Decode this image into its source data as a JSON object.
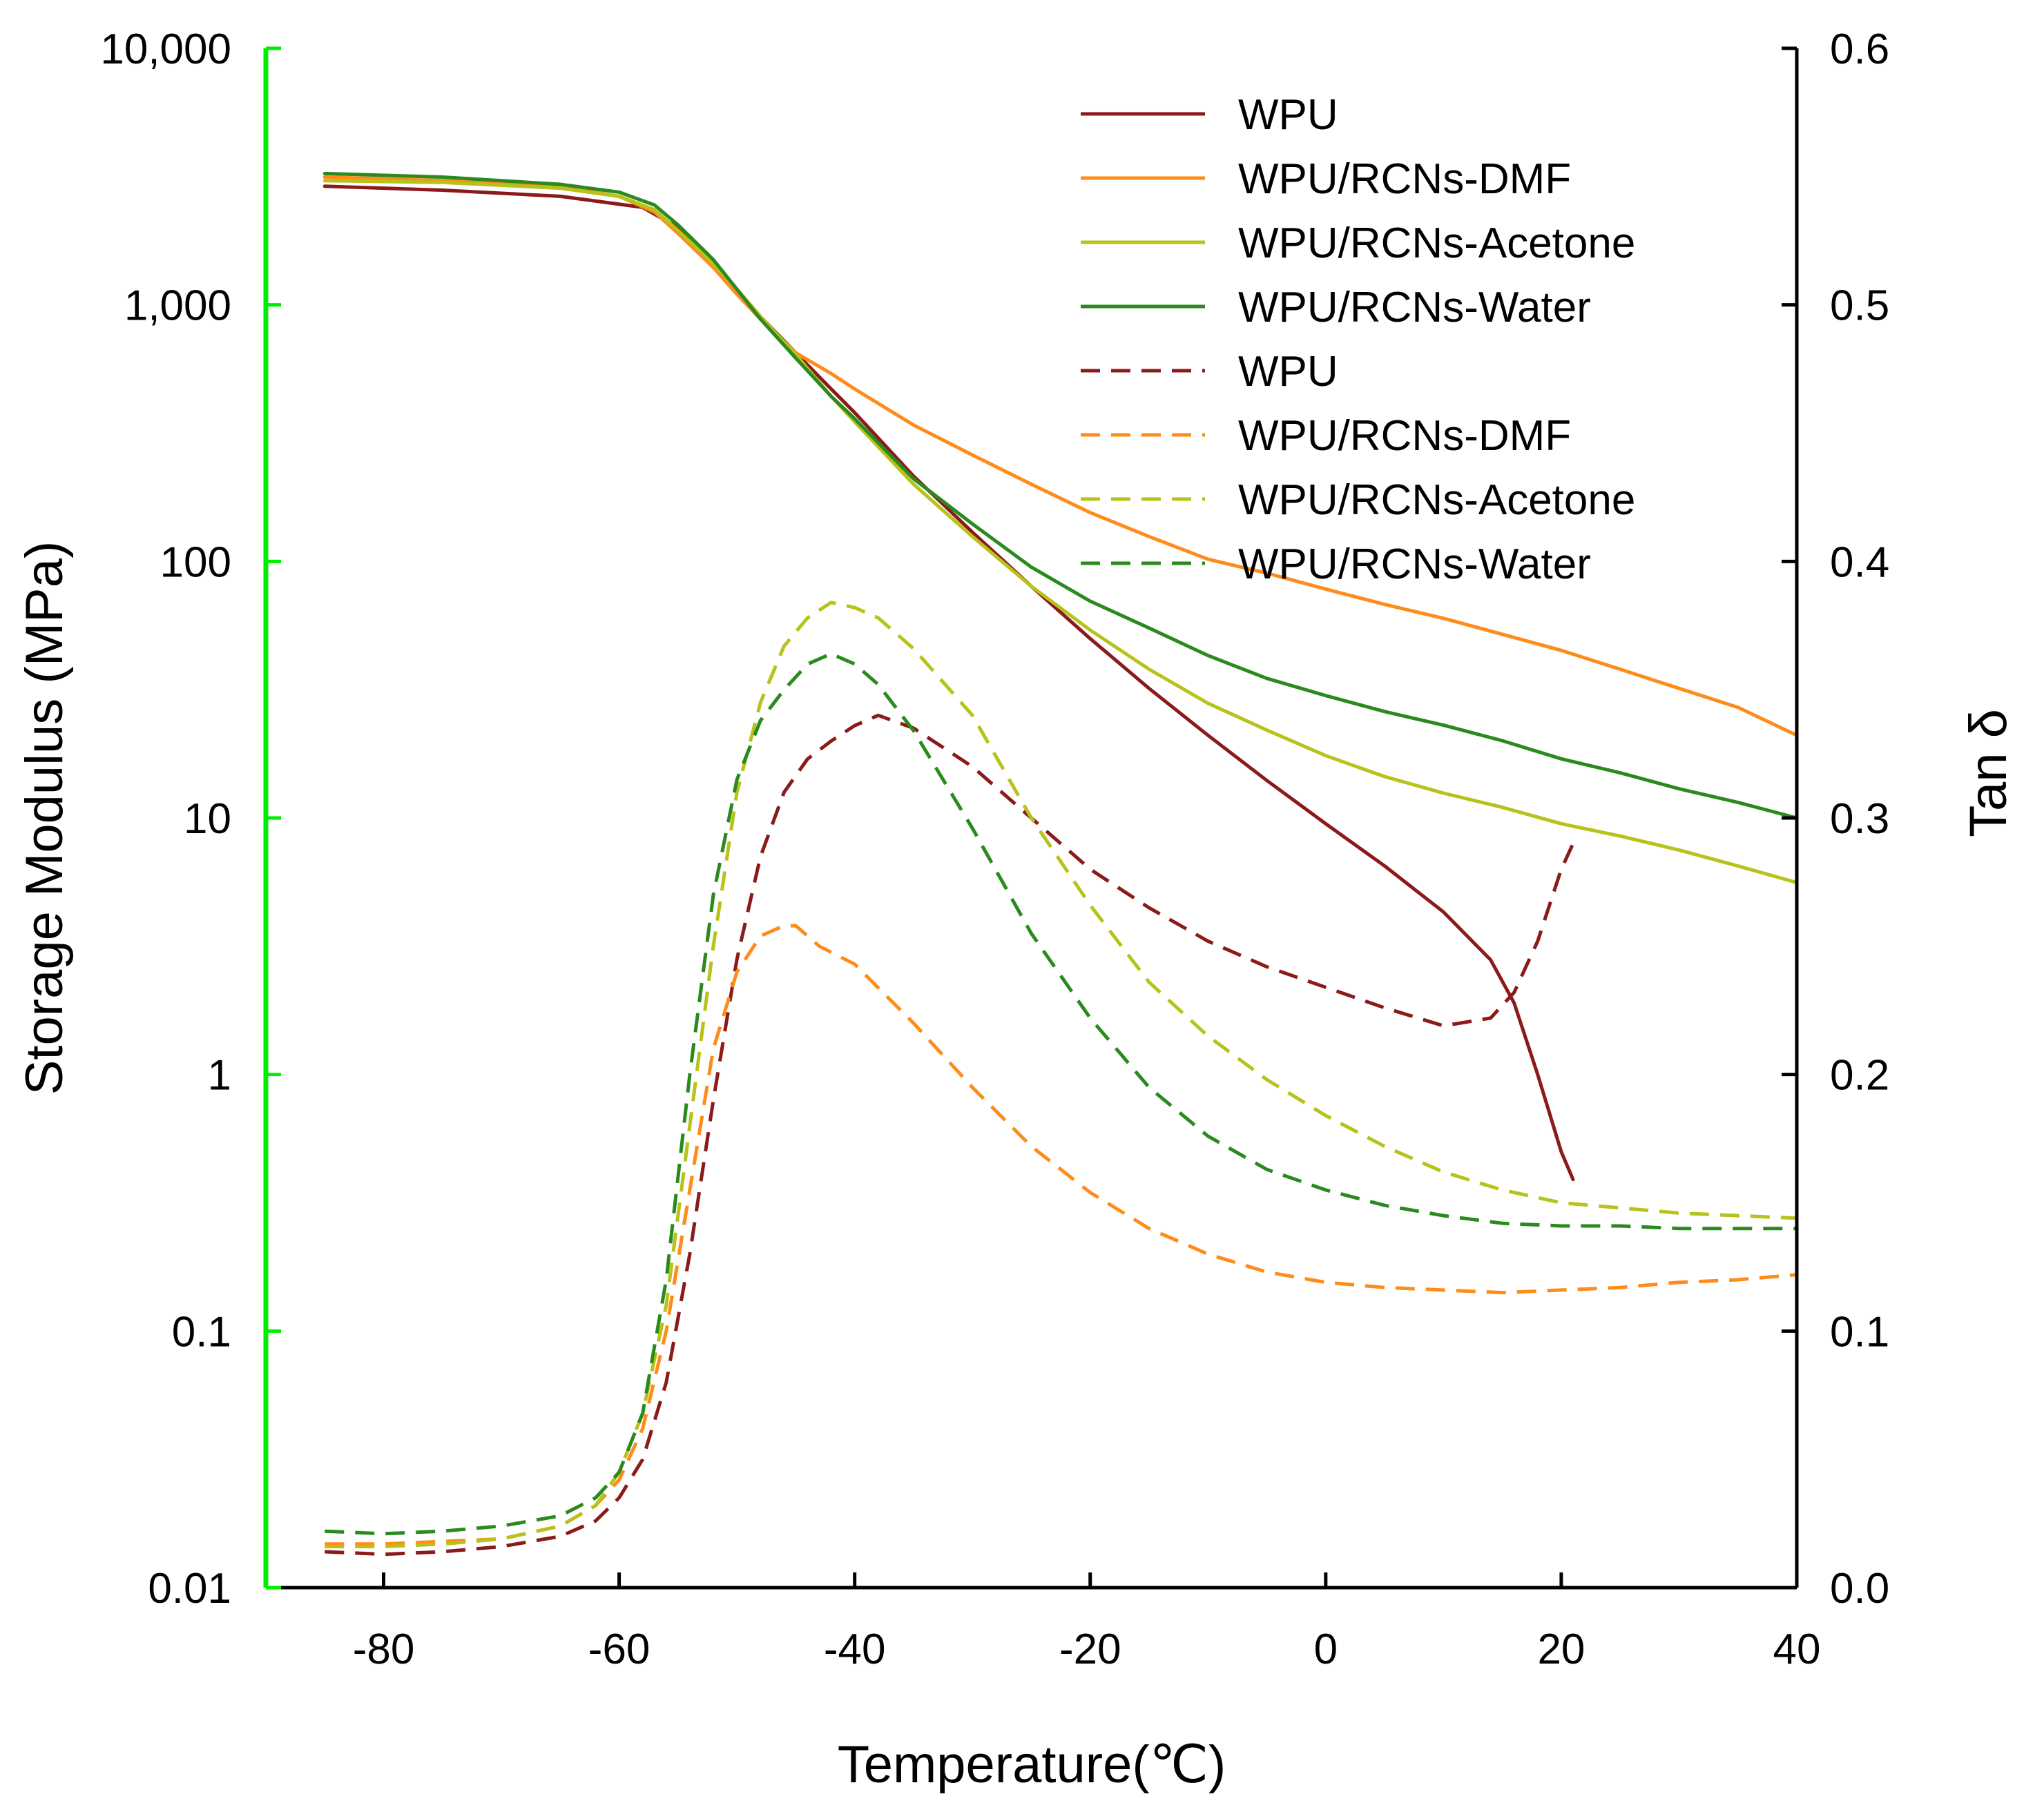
{
  "chart_data": {
    "type": "line",
    "xlabel": "Temperature(℃)",
    "ylabel_left": "Storage Modulus (MPa)",
    "ylabel_right": "Tan δ",
    "xlim": [
      -90,
      40
    ],
    "x_ticks": [
      -80,
      -60,
      -40,
      -20,
      0,
      20,
      40
    ],
    "y_left_scale": "log",
    "y_left_lim": [
      0.01,
      10000
    ],
    "y_left_ticks": [
      {
        "value": 0.01,
        "label": "0.01"
      },
      {
        "value": 0.1,
        "label": "0.1"
      },
      {
        "value": 1,
        "label": "1"
      },
      {
        "value": 10,
        "label": "10"
      },
      {
        "value": 100,
        "label": "100"
      },
      {
        "value": 1000,
        "label": "1,000"
      },
      {
        "value": 10000,
        "label": "10,000"
      }
    ],
    "y_right_lim": [
      0.0,
      0.6
    ],
    "y_right_ticks": [
      "0.0",
      "0.1",
      "0.2",
      "0.3",
      "0.4",
      "0.5",
      "0.6"
    ],
    "grid": false,
    "legend_position": "top-right",
    "left_axis_color": "#00ee00",
    "series": [
      {
        "name": "WPU",
        "axis": "left",
        "style": "solid",
        "color": "#8b1a1a",
        "points": [
          [
            -85,
            2900
          ],
          [
            -75,
            2800
          ],
          [
            -65,
            2650
          ],
          [
            -58,
            2400
          ],
          [
            -55,
            2000
          ],
          [
            -52,
            1450
          ],
          [
            -50,
            1150
          ],
          [
            -48,
            900
          ],
          [
            -45,
            650
          ],
          [
            -42,
            470
          ],
          [
            -40,
            380
          ],
          [
            -35,
            215
          ],
          [
            -30,
            130
          ],
          [
            -25,
            80
          ],
          [
            -20,
            50
          ],
          [
            -15,
            32
          ],
          [
            -10,
            21
          ],
          [
            -5,
            14
          ],
          [
            0,
            9.5
          ],
          [
            5,
            6.5
          ],
          [
            10,
            4.3
          ],
          [
            14,
            2.8
          ],
          [
            16,
            1.9
          ],
          [
            18,
            1.0
          ],
          [
            20,
            0.5
          ],
          [
            21,
            0.39
          ]
        ]
      },
      {
        "name": "WPU/RCNs-DMF",
        "axis": "left",
        "style": "solid",
        "color": "#ff8c1a",
        "points": [
          [
            -85,
            3150
          ],
          [
            -75,
            3050
          ],
          [
            -65,
            2900
          ],
          [
            -60,
            2650
          ],
          [
            -57,
            2300
          ],
          [
            -55,
            1900
          ],
          [
            -52,
            1400
          ],
          [
            -50,
            1100
          ],
          [
            -48,
            880
          ],
          [
            -45,
            650
          ],
          [
            -42,
            540
          ],
          [
            -40,
            470
          ],
          [
            -35,
            340
          ],
          [
            -30,
            260
          ],
          [
            -25,
            200
          ],
          [
            -20,
            155
          ],
          [
            -15,
            125
          ],
          [
            -10,
            102
          ],
          [
            -5,
            90
          ],
          [
            0,
            78
          ],
          [
            5,
            68
          ],
          [
            10,
            60
          ],
          [
            15,
            52
          ],
          [
            20,
            45
          ],
          [
            25,
            38
          ],
          [
            30,
            32
          ],
          [
            35,
            27
          ],
          [
            40,
            21
          ]
        ]
      },
      {
        "name": "WPU/RCNs-Acetone",
        "axis": "left",
        "style": "solid",
        "color": "#b7c21a",
        "points": [
          [
            -85,
            3050
          ],
          [
            -75,
            3000
          ],
          [
            -65,
            2850
          ],
          [
            -60,
            2650
          ],
          [
            -57,
            2350
          ],
          [
            -55,
            1950
          ],
          [
            -52,
            1450
          ],
          [
            -50,
            1150
          ],
          [
            -48,
            900
          ],
          [
            -45,
            640
          ],
          [
            -42,
            440
          ],
          [
            -40,
            350
          ],
          [
            -35,
            200
          ],
          [
            -30,
            125
          ],
          [
            -25,
            80
          ],
          [
            -20,
            54
          ],
          [
            -15,
            38
          ],
          [
            -10,
            28
          ],
          [
            -5,
            22
          ],
          [
            0,
            17.5
          ],
          [
            5,
            14.5
          ],
          [
            10,
            12.5
          ],
          [
            15,
            11
          ],
          [
            20,
            9.5
          ],
          [
            25,
            8.5
          ],
          [
            30,
            7.5
          ],
          [
            35,
            6.5
          ],
          [
            40,
            5.6
          ]
        ]
      },
      {
        "name": "WPU/RCNs-Water",
        "axis": "left",
        "style": "solid",
        "color": "#2a8a1e",
        "points": [
          [
            -85,
            3250
          ],
          [
            -75,
            3150
          ],
          [
            -65,
            2950
          ],
          [
            -60,
            2750
          ],
          [
            -57,
            2450
          ],
          [
            -55,
            2050
          ],
          [
            -52,
            1500
          ],
          [
            -50,
            1150
          ],
          [
            -48,
            880
          ],
          [
            -45,
            620
          ],
          [
            -42,
            440
          ],
          [
            -40,
            360
          ],
          [
            -35,
            210
          ],
          [
            -30,
            140
          ],
          [
            -25,
            95
          ],
          [
            -20,
            70
          ],
          [
            -15,
            55
          ],
          [
            -10,
            43
          ],
          [
            -5,
            35
          ],
          [
            0,
            30
          ],
          [
            5,
            26
          ],
          [
            10,
            23
          ],
          [
            15,
            20
          ],
          [
            20,
            17
          ],
          [
            25,
            15
          ],
          [
            30,
            13
          ],
          [
            35,
            11.5
          ],
          [
            40,
            10
          ]
        ]
      },
      {
        "name": "WPU",
        "axis": "right",
        "style": "dashed",
        "color": "#8b1a1a",
        "points": [
          [
            -85,
            0.014
          ],
          [
            -80,
            0.013
          ],
          [
            -75,
            0.014
          ],
          [
            -70,
            0.016
          ],
          [
            -65,
            0.02
          ],
          [
            -62,
            0.026
          ],
          [
            -60,
            0.035
          ],
          [
            -58,
            0.05
          ],
          [
            -56,
            0.08
          ],
          [
            -54,
            0.13
          ],
          [
            -52,
            0.19
          ],
          [
            -50,
            0.245
          ],
          [
            -48,
            0.285
          ],
          [
            -46,
            0.31
          ],
          [
            -44,
            0.323
          ],
          [
            -42,
            0.33
          ],
          [
            -40,
            0.336
          ],
          [
            -38,
            0.34
          ],
          [
            -35,
            0.335
          ],
          [
            -30,
            0.32
          ],
          [
            -25,
            0.3
          ],
          [
            -20,
            0.28
          ],
          [
            -15,
            0.265
          ],
          [
            -10,
            0.252
          ],
          [
            -5,
            0.242
          ],
          [
            0,
            0.234
          ],
          [
            5,
            0.226
          ],
          [
            10,
            0.219
          ],
          [
            14,
            0.222
          ],
          [
            16,
            0.232
          ],
          [
            18,
            0.252
          ],
          [
            20,
            0.28
          ],
          [
            21,
            0.29
          ]
        ]
      },
      {
        "name": "WPU/RCNs-DMF",
        "axis": "right",
        "style": "dashed",
        "color": "#ff8c1a",
        "points": [
          [
            -85,
            0.017
          ],
          [
            -80,
            0.017
          ],
          [
            -75,
            0.018
          ],
          [
            -70,
            0.019
          ],
          [
            -65,
            0.024
          ],
          [
            -62,
            0.032
          ],
          [
            -60,
            0.042
          ],
          [
            -58,
            0.062
          ],
          [
            -56,
            0.1
          ],
          [
            -54,
            0.155
          ],
          [
            -52,
            0.21
          ],
          [
            -50,
            0.24
          ],
          [
            -48,
            0.254
          ],
          [
            -46,
            0.258
          ],
          [
            -45,
            0.258
          ],
          [
            -43,
            0.25
          ],
          [
            -40,
            0.243
          ],
          [
            -35,
            0.22
          ],
          [
            -30,
            0.195
          ],
          [
            -25,
            0.172
          ],
          [
            -20,
            0.154
          ],
          [
            -15,
            0.14
          ],
          [
            -10,
            0.13
          ],
          [
            -5,
            0.123
          ],
          [
            0,
            0.119
          ],
          [
            5,
            0.117
          ],
          [
            10,
            0.116
          ],
          [
            15,
            0.115
          ],
          [
            20,
            0.116
          ],
          [
            25,
            0.117
          ],
          [
            30,
            0.119
          ],
          [
            35,
            0.12
          ],
          [
            40,
            0.122
          ]
        ]
      },
      {
        "name": "WPU/RCNs-Acetone",
        "axis": "right",
        "style": "dashed",
        "color": "#b7c21a",
        "points": [
          [
            -85,
            0.016
          ],
          [
            -80,
            0.016
          ],
          [
            -75,
            0.017
          ],
          [
            -70,
            0.019
          ],
          [
            -65,
            0.024
          ],
          [
            -62,
            0.032
          ],
          [
            -60,
            0.045
          ],
          [
            -58,
            0.068
          ],
          [
            -56,
            0.11
          ],
          [
            -54,
            0.18
          ],
          [
            -52,
            0.25
          ],
          [
            -50,
            0.31
          ],
          [
            -48,
            0.345
          ],
          [
            -46,
            0.367
          ],
          [
            -44,
            0.378
          ],
          [
            -42,
            0.384
          ],
          [
            -40,
            0.382
          ],
          [
            -38,
            0.378
          ],
          [
            -35,
            0.366
          ],
          [
            -30,
            0.34
          ],
          [
            -25,
            0.3
          ],
          [
            -20,
            0.266
          ],
          [
            -15,
            0.236
          ],
          [
            -10,
            0.215
          ],
          [
            -5,
            0.198
          ],
          [
            0,
            0.184
          ],
          [
            5,
            0.172
          ],
          [
            10,
            0.162
          ],
          [
            15,
            0.155
          ],
          [
            20,
            0.15
          ],
          [
            25,
            0.148
          ],
          [
            30,
            0.146
          ],
          [
            35,
            0.145
          ],
          [
            40,
            0.144
          ]
        ]
      },
      {
        "name": "WPU/RCNs-Water",
        "axis": "right",
        "style": "dashed",
        "color": "#2a8a1e",
        "points": [
          [
            -85,
            0.022
          ],
          [
            -80,
            0.021
          ],
          [
            -75,
            0.022
          ],
          [
            -70,
            0.024
          ],
          [
            -65,
            0.028
          ],
          [
            -62,
            0.035
          ],
          [
            -60,
            0.045
          ],
          [
            -58,
            0.068
          ],
          [
            -56,
            0.12
          ],
          [
            -54,
            0.2
          ],
          [
            -52,
            0.27
          ],
          [
            -50,
            0.315
          ],
          [
            -48,
            0.338
          ],
          [
            -46,
            0.35
          ],
          [
            -44,
            0.36
          ],
          [
            -42,
            0.364
          ],
          [
            -40,
            0.36
          ],
          [
            -38,
            0.352
          ],
          [
            -35,
            0.334
          ],
          [
            -30,
            0.296
          ],
          [
            -25,
            0.255
          ],
          [
            -20,
            0.222
          ],
          [
            -15,
            0.195
          ],
          [
            -10,
            0.176
          ],
          [
            -5,
            0.163
          ],
          [
            0,
            0.155
          ],
          [
            5,
            0.149
          ],
          [
            10,
            0.145
          ],
          [
            15,
            0.142
          ],
          [
            20,
            0.141
          ],
          [
            25,
            0.141
          ],
          [
            30,
            0.14
          ],
          [
            35,
            0.14
          ],
          [
            40,
            0.14
          ]
        ]
      }
    ]
  }
}
